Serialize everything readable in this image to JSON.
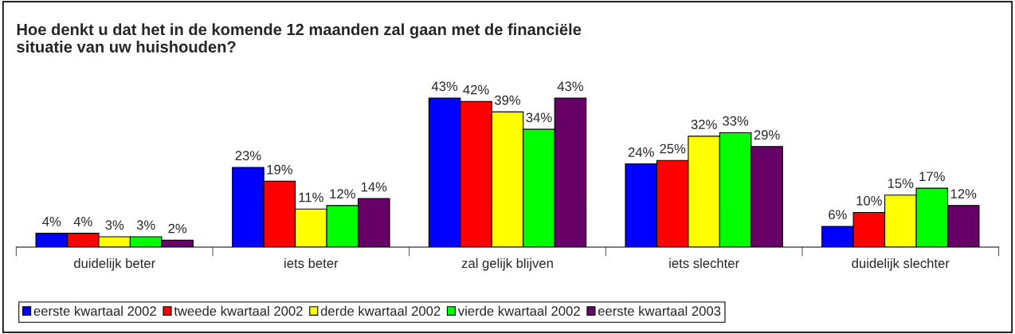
{
  "chart_data": {
    "type": "bar",
    "title": "Hoe denkt u dat het in de komende 12 maanden zal gaan met de financiële\nsituatie van uw huishouden?",
    "categories": [
      "duidelijk beter",
      "iets beter",
      "zal gelijk blijven",
      "iets slechter",
      "duidelijk slechter"
    ],
    "series": [
      {
        "name": "eerste kwartaal 2002",
        "color": "#0000ff",
        "values": [
          4,
          23,
          43,
          24,
          6
        ],
        "value_labels": [
          "4%",
          "23%",
          "43%",
          "24%",
          "6%"
        ]
      },
      {
        "name": "tweede kwartaal 2002",
        "color": "#ff0000",
        "values": [
          4,
          19,
          42,
          25,
          10
        ],
        "value_labels": [
          "4%",
          "19%",
          "42%",
          "25%",
          "10%"
        ]
      },
      {
        "name": "derde kwartaal 2002",
        "color": "#ffff00",
        "values": [
          3,
          11,
          39,
          32,
          15
        ],
        "value_labels": [
          "3%",
          "11%",
          "39%",
          "32%",
          "15%"
        ]
      },
      {
        "name": "vierde kwartaal 2002",
        "color": "#00ff00",
        "values": [
          3,
          12,
          34,
          33,
          17
        ],
        "value_labels": [
          "3%",
          "12%",
          "34%",
          "33%",
          "17%"
        ]
      },
      {
        "name": "eerste kwartaal 2003",
        "color": "#660066",
        "values": [
          2,
          14,
          43,
          29,
          12
        ],
        "value_labels": [
          "2%",
          "14%",
          "43%",
          "29%",
          "12%"
        ]
      }
    ],
    "legend": "bottom",
    "grid": false
  }
}
